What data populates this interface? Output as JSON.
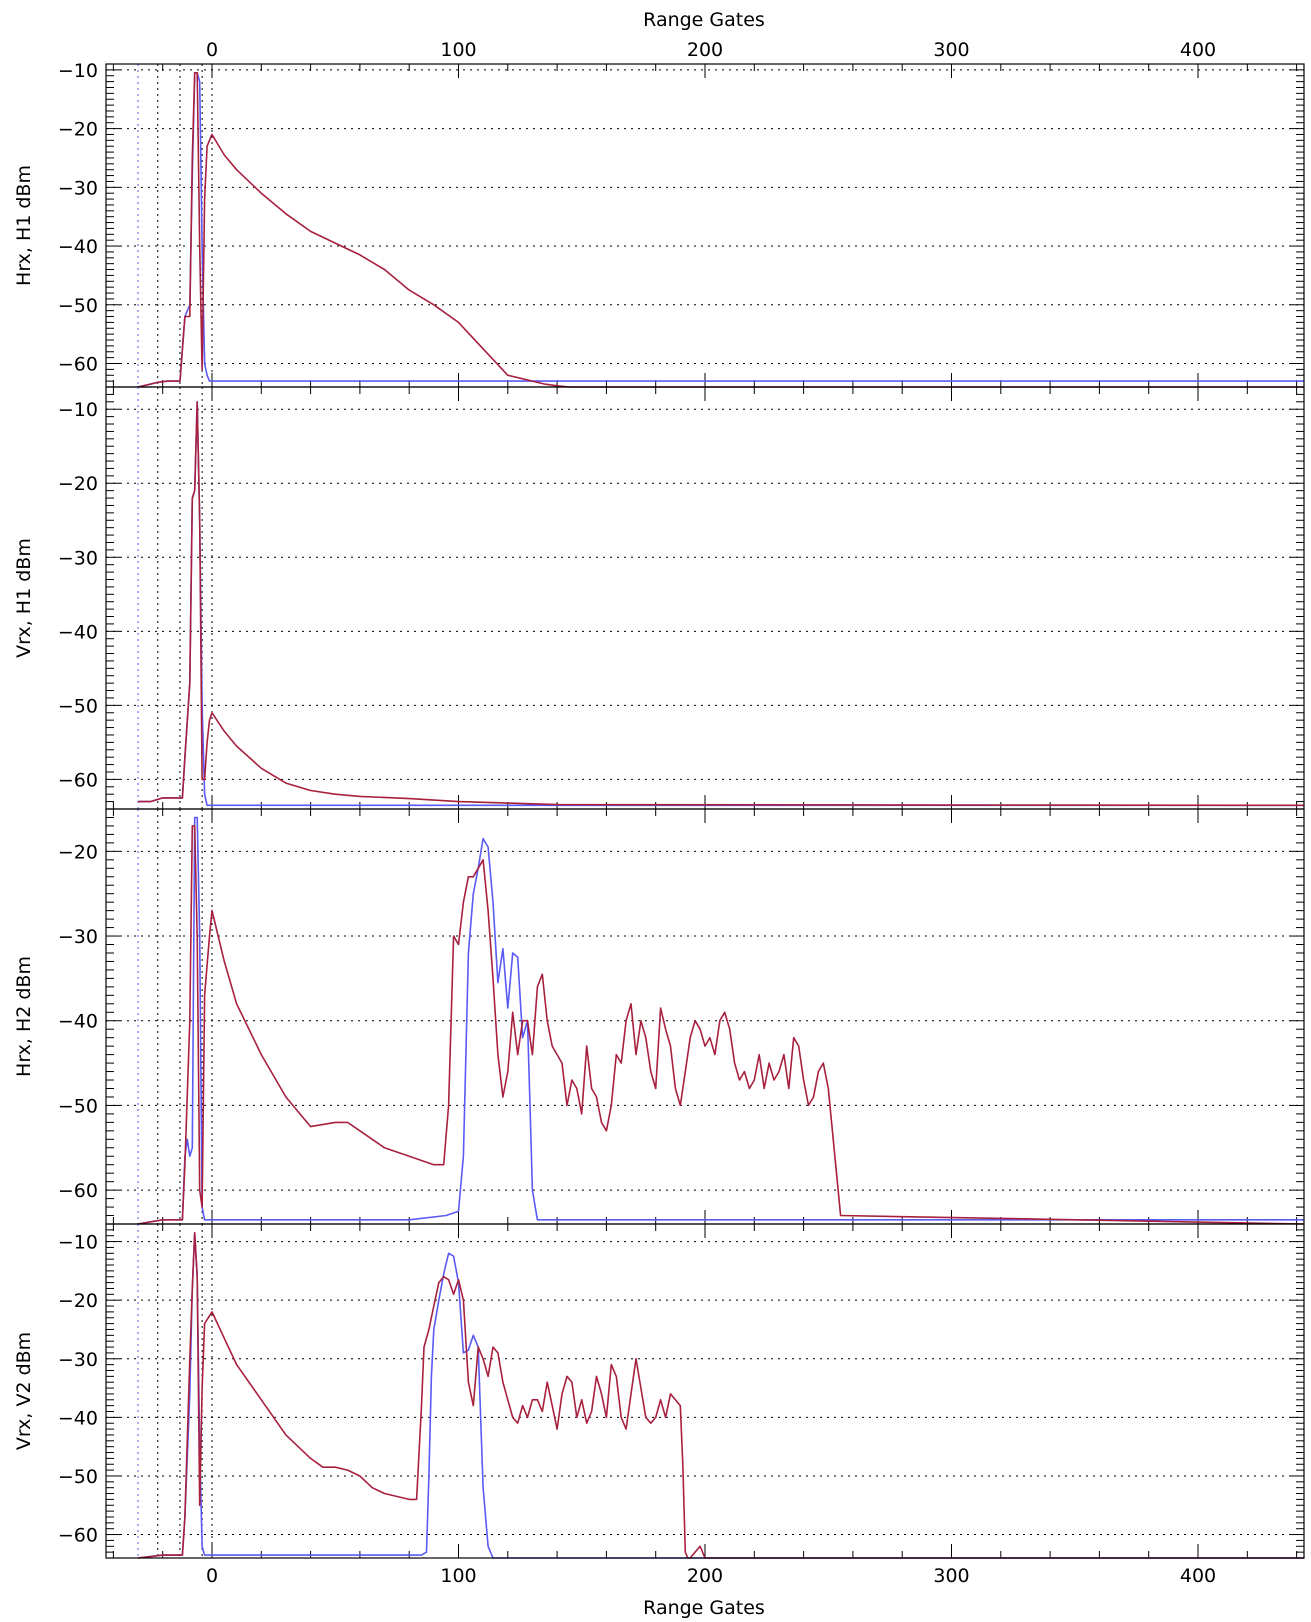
{
  "x_title_top": "Range Gates",
  "x_title_bottom": "Range Gates",
  "chart_data": [
    {
      "type": "line",
      "ylabel": "Hrx, H1 dBm",
      "xlim": [
        -43,
        443
      ],
      "ylim": [
        -64,
        -9
      ],
      "xticks": [
        0,
        100,
        200,
        300,
        400
      ],
      "yticks": [
        -60,
        -50,
        -40,
        -30,
        -20,
        -10
      ],
      "grid": true,
      "vlines": [
        -30,
        -22,
        -13,
        -4,
        0
      ],
      "colors": {
        "series_a": "#5a5af5",
        "series_b": "#a8203e"
      },
      "series": [
        {
          "x": [
            -30,
            -25,
            -22,
            -18,
            -13,
            -11,
            -9,
            -8,
            -7,
            -6,
            -5,
            -4,
            -3,
            -2,
            -1,
            0,
            5,
            10,
            20,
            30,
            50,
            60,
            70,
            80,
            90,
            100,
            110,
            120,
            130,
            135,
            145,
            150,
            443
          ],
          "values": [
            -64,
            -63.5,
            -63.2,
            -63,
            -63,
            -52,
            -50,
            -28,
            -10.5,
            -10.5,
            -12,
            -40,
            -60,
            -62,
            -63,
            -63,
            -63,
            -63,
            -63,
            -63,
            -63,
            -63,
            -63,
            -63,
            -63,
            -63,
            -63,
            -63,
            -63,
            -63,
            -63,
            -63,
            -63
          ]
        },
        {
          "x": [
            -30,
            -25,
            -22,
            -18,
            -13,
            -11,
            -9,
            -8,
            -7,
            -6,
            -5,
            -4,
            -3,
            -2,
            -1,
            0,
            5,
            10,
            20,
            30,
            40,
            50,
            60,
            70,
            80,
            90,
            100,
            110,
            120,
            125,
            130,
            135,
            140,
            145,
            150,
            443
          ],
          "values": [
            -64,
            -63.5,
            -63.2,
            -63,
            -63,
            -52,
            -52,
            -25,
            -10.5,
            -10.5,
            -40,
            -61,
            -32,
            -23,
            -22,
            -21,
            -24.5,
            -27,
            -31,
            -34.5,
            -37.5,
            -39.5,
            -41.5,
            -44,
            -47.5,
            -50,
            -53,
            -57.5,
            -62,
            -62.5,
            -63,
            -63.5,
            -63.8,
            -64,
            -64,
            -64
          ]
        }
      ]
    },
    {
      "type": "line",
      "ylabel": "Vrx, H1 dBm",
      "xlim": [
        -43,
        443
      ],
      "ylim": [
        -64,
        -7
      ],
      "xticks": [
        0,
        100,
        200,
        300,
        400
      ],
      "yticks": [
        -60,
        -50,
        -40,
        -30,
        -20,
        -10
      ],
      "grid": true,
      "vlines": [
        -30,
        -22,
        -13,
        -4,
        0
      ],
      "colors": {
        "series_a": "#5a5af5",
        "series_b": "#a8203e"
      },
      "series": [
        {
          "x": [
            -30,
            -25,
            -20,
            -12,
            -11,
            -9,
            -8,
            -7,
            -6,
            -5,
            -4,
            -3,
            -2,
            -1,
            0,
            20,
            40,
            443
          ],
          "values": [
            -63,
            -63,
            -62.5,
            -62.5,
            -57,
            -47,
            -22,
            -21,
            -9,
            -25,
            -50,
            -62,
            -63.5,
            -63.5,
            -63.5,
            -63.5,
            -63.5,
            -63.5
          ]
        },
        {
          "x": [
            -30,
            -25,
            -20,
            -12,
            -11,
            -9,
            -8,
            -7,
            -6,
            -5,
            -4,
            -3,
            -2,
            -1,
            0,
            5,
            10,
            20,
            30,
            40,
            50,
            60,
            80,
            100,
            120,
            140,
            443
          ],
          "values": [
            -63,
            -63,
            -62.5,
            -62.5,
            -57,
            -47,
            -22,
            -21,
            -9,
            -25,
            -60,
            -60,
            -55,
            -52,
            -51,
            -53.5,
            -55.5,
            -58.5,
            -60.5,
            -61.5,
            -62,
            -62.3,
            -62.6,
            -63,
            -63.2,
            -63.4,
            -63.5
          ]
        }
      ]
    },
    {
      "type": "line",
      "ylabel": "Hrx, H2 dBm",
      "xlim": [
        -43,
        443
      ],
      "ylim": [
        -64,
        -15
      ],
      "xticks": [
        0,
        100,
        200,
        300,
        400
      ],
      "yticks": [
        -60,
        -50,
        -40,
        -30,
        -20
      ],
      "grid": true,
      "vlines": [
        -30,
        -22,
        -13,
        -4,
        0
      ],
      "colors": {
        "series_a": "#5a5af5",
        "series_b": "#a8203e"
      },
      "series": [
        {
          "x": [
            -30,
            -20,
            -12,
            -11,
            -10,
            -9,
            -8,
            -7,
            -6,
            -5,
            -4,
            -3,
            0,
            20,
            60,
            80,
            95,
            100,
            102,
            104,
            106,
            108,
            110,
            112,
            114,
            116,
            118,
            120,
            122,
            124,
            126,
            128,
            129,
            130,
            132,
            140,
            443
          ],
          "values": [
            -64,
            -63.5,
            -63.5,
            -56,
            -54,
            -56,
            -55,
            -16,
            -16,
            -30,
            -62,
            -63.5,
            -63.5,
            -63.5,
            -63.5,
            -63.5,
            -63,
            -62.5,
            -56,
            -32,
            -25,
            -22,
            -18.5,
            -19.5,
            -26,
            -35.5,
            -31.5,
            -38.5,
            -32,
            -32.5,
            -42,
            -40,
            -50,
            -60,
            -63.5,
            -63.5,
            -63.5
          ]
        },
        {
          "x": [
            -30,
            -20,
            -12,
            -11,
            -9,
            -8,
            -7,
            -6,
            -5,
            -4,
            -3,
            -1,
            0,
            5,
            10,
            20,
            30,
            40,
            50,
            55,
            60,
            65,
            70,
            80,
            90,
            94,
            96,
            97,
            98,
            100,
            102,
            104,
            106,
            108,
            110,
            112,
            114,
            116,
            118,
            120,
            122,
            124,
            126,
            128,
            130,
            132,
            134,
            136,
            138,
            140,
            142,
            144,
            146,
            148,
            150,
            152,
            154,
            156,
            158,
            160,
            162,
            164,
            166,
            168,
            170,
            172,
            174,
            176,
            178,
            180,
            182,
            184,
            186,
            188,
            190,
            192,
            194,
            196,
            198,
            200,
            202,
            204,
            206,
            208,
            210,
            212,
            214,
            216,
            218,
            220,
            222,
            224,
            226,
            228,
            230,
            232,
            234,
            236,
            238,
            240,
            242,
            244,
            246,
            248,
            250,
            255,
            443
          ],
          "values": [
            -64,
            -63.5,
            -63.5,
            -57,
            -40,
            -17,
            -17,
            -30,
            -60,
            -62,
            -37,
            -30,
            -27,
            -33,
            -38,
            -44,
            -49,
            -52.5,
            -52,
            -52,
            -53,
            -54,
            -55,
            -56,
            -57,
            -57,
            -50,
            -40,
            -30,
            -31,
            -26,
            -23,
            -23,
            -22,
            -21,
            -27,
            -35,
            -44,
            -49,
            -46,
            -39,
            -44,
            -40,
            -40,
            -44,
            -36,
            -34.5,
            -40,
            -43,
            -44,
            -45,
            -50,
            -47,
            -48,
            -51,
            -43,
            -48,
            -49,
            -52,
            -53,
            -50,
            -44,
            -45,
            -40,
            -38,
            -44,
            -40,
            -42,
            -46,
            -48,
            -38.5,
            -41,
            -43,
            -48,
            -50,
            -46,
            -42,
            -40,
            -41,
            -43,
            -42,
            -44,
            -40,
            -39,
            -41,
            -45,
            -47,
            -46,
            -48,
            -47,
            -44,
            -48,
            -45,
            -47,
            -46,
            -44,
            -48,
            -42,
            -43,
            -47,
            -50,
            -49,
            -46,
            -45,
            -48,
            -63,
            -64
          ]
        }
      ]
    },
    {
      "type": "line",
      "ylabel": "Vrx, V2 dBm",
      "xlim": [
        -43,
        443
      ],
      "ylim": [
        -64,
        -7
      ],
      "xticks": [
        0,
        100,
        200,
        300,
        400
      ],
      "yticks": [
        -60,
        -50,
        -40,
        -30,
        -20,
        -10
      ],
      "grid": true,
      "vlines": [
        -30,
        -22,
        -13,
        -4,
        0
      ],
      "colors": {
        "series_a": "#5a5af5",
        "series_b": "#a8203e"
      },
      "series": [
        {
          "x": [
            -30,
            -20,
            -12,
            -11,
            -9,
            -8,
            -7,
            -6,
            -5,
            -4,
            -3,
            0,
            40,
            85,
            87,
            88,
            89,
            90,
            92,
            94,
            96,
            98,
            100,
            102,
            104,
            106,
            108,
            110,
            112,
            114,
            443
          ],
          "values": [
            -64,
            -63.5,
            -63.5,
            -57,
            -36,
            -18,
            -8.5,
            -16,
            -45,
            -62,
            -63.5,
            -63.5,
            -63.5,
            -63.5,
            -63,
            -50,
            -33,
            -25,
            -20,
            -15.5,
            -12,
            -12.5,
            -17,
            -29,
            -28.5,
            -26,
            -28,
            -52,
            -62,
            -64,
            -64
          ]
        },
        {
          "x": [
            -30,
            -20,
            -12,
            -11,
            -9,
            -8,
            -7,
            -6,
            -5,
            -4,
            -3,
            0,
            5,
            10,
            20,
            30,
            40,
            45,
            50,
            55,
            60,
            65,
            70,
            80,
            83,
            85,
            86,
            88,
            90,
            92,
            94,
            96,
            98,
            100,
            102,
            104,
            106,
            108,
            110,
            112,
            114,
            116,
            118,
            120,
            122,
            124,
            126,
            128,
            130,
            132,
            134,
            136,
            138,
            140,
            142,
            144,
            146,
            148,
            150,
            152,
            154,
            156,
            158,
            160,
            162,
            164,
            166,
            168,
            170,
            172,
            174,
            176,
            178,
            180,
            182,
            184,
            186,
            188,
            190,
            191,
            192,
            193,
            194,
            196,
            198,
            200,
            443
          ],
          "values": [
            -64,
            -63.5,
            -63.5,
            -57,
            -30,
            -18,
            -8.5,
            -16,
            -55,
            -35,
            -24,
            -22,
            -26.5,
            -31,
            -37,
            -43,
            -47,
            -48.5,
            -48.5,
            -49,
            -50,
            -52,
            -53,
            -54,
            -54,
            -38,
            -28,
            -25,
            -21,
            -17,
            -16,
            -16.5,
            -19,
            -16.5,
            -20,
            -34,
            -38,
            -28,
            -30,
            -33,
            -28,
            -29,
            -34,
            -37,
            -40,
            -41,
            -38,
            -40,
            -37,
            -37,
            -39,
            -34,
            -38,
            -42,
            -36,
            -33,
            -34,
            -40,
            -37,
            -41,
            -39,
            -33,
            -36,
            -40,
            -31,
            -33,
            -40,
            -42,
            -36,
            -30,
            -35,
            -40,
            -41,
            -40,
            -37,
            -40,
            -36,
            -37,
            -38,
            -48,
            -63,
            -64,
            -64,
            -63,
            -62,
            -64,
            -64
          ]
        }
      ]
    }
  ]
}
